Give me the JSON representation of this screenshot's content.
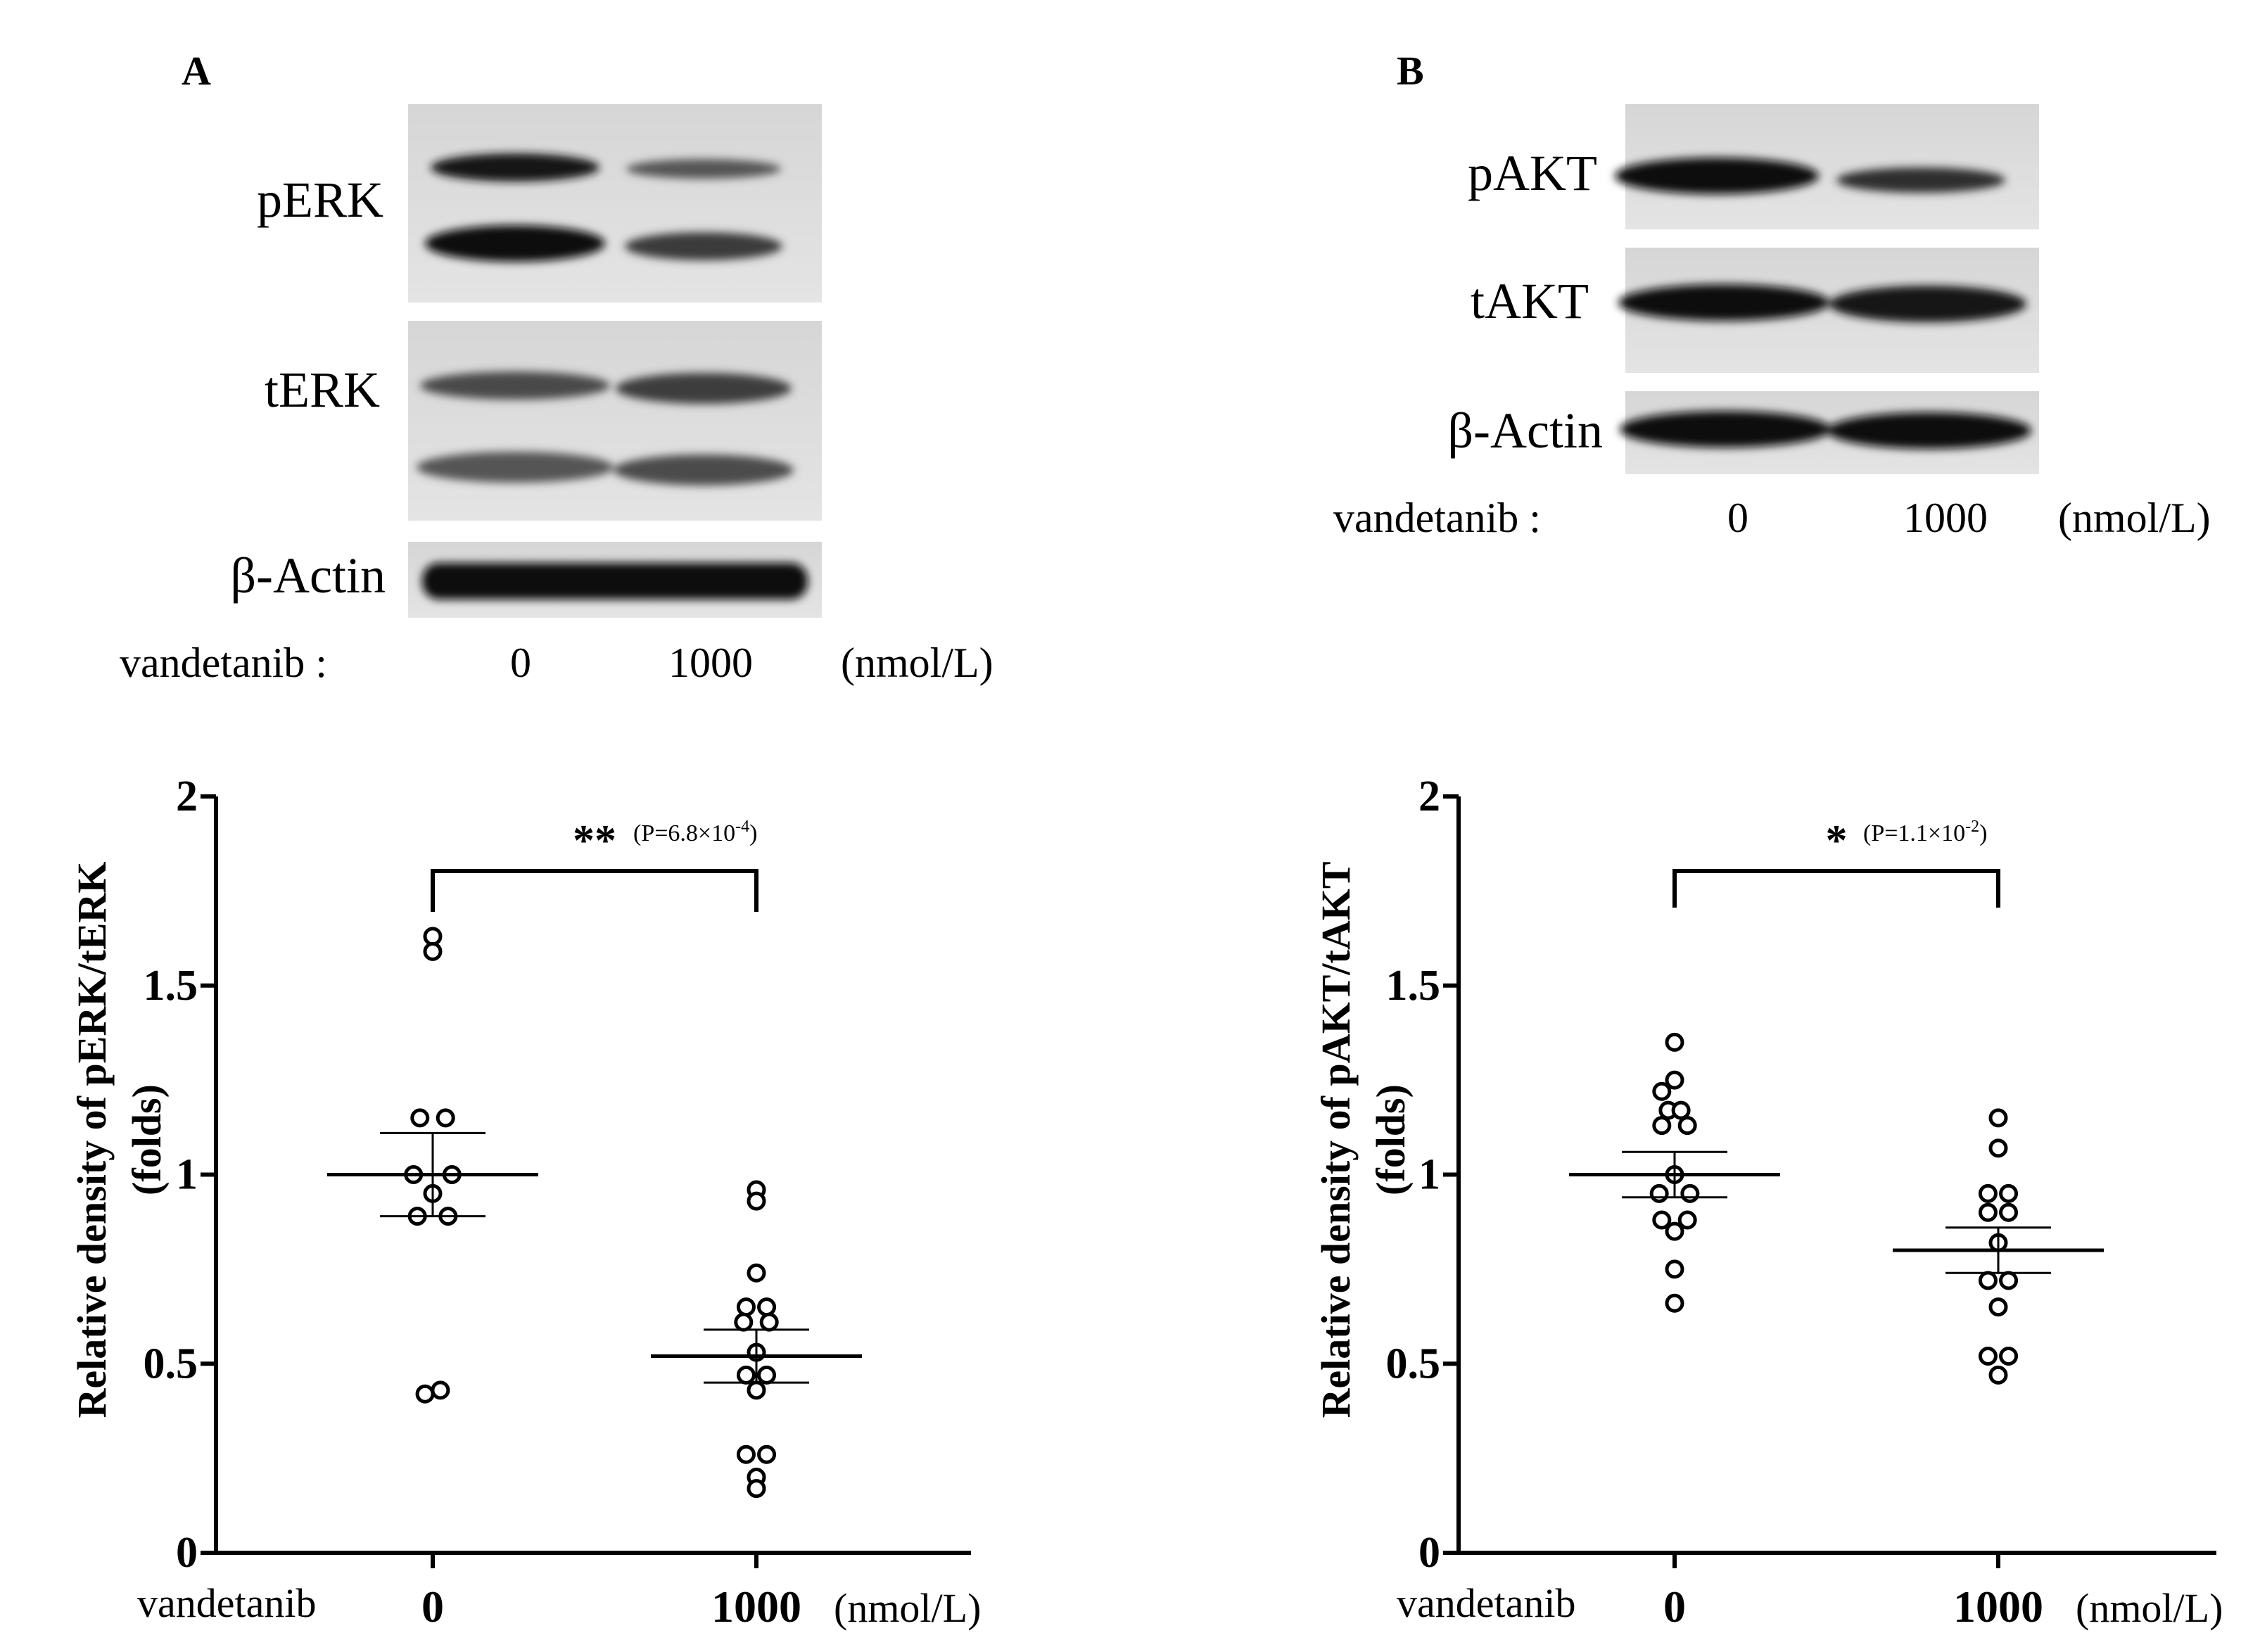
{
  "panels": [
    {
      "letter": "A",
      "blot": {
        "rows": [
          "pERK",
          "tERK",
          "β-Actin"
        ],
        "treatment_label": "vandetanib :",
        "doses": [
          "0",
          "1000"
        ],
        "unit": "(nmol/L)"
      }
    },
    {
      "letter": "B",
      "blot": {
        "rows": [
          "pAKT",
          "tAKT",
          "β-Actin"
        ],
        "treatment_label": "vandetanib :",
        "doses": [
          "0",
          "1000"
        ],
        "unit": "(nmol/L)"
      }
    }
  ],
  "chart_data": [
    {
      "type": "scatter",
      "title": "",
      "ylabel": "Relative density of pERK/tERK",
      "ylabel2": "(folds)",
      "ylim": [
        0,
        2
      ],
      "yticks": [
        "0",
        "0.5",
        "1",
        "1.5",
        "2"
      ],
      "ytick_values": [
        0,
        0.5,
        1,
        1.5,
        2
      ],
      "x_label": "vandetanib",
      "categories": [
        "0",
        "1000"
      ],
      "unit": "(nmol/L)",
      "groups": [
        {
          "category": "0",
          "mean": 1.0,
          "sem": [
            0.89,
            1.11
          ],
          "points": [
            {
              "offset": 0,
              "y": 1.63
            },
            {
              "offset": 0,
              "y": 1.59
            },
            {
              "offset": -0.5,
              "y": 1.15
            },
            {
              "offset": 0.5,
              "y": 1.15
            },
            {
              "offset": -0.75,
              "y": 1.0
            },
            {
              "offset": 0.75,
              "y": 1.0
            },
            {
              "offset": 0,
              "y": 0.95
            },
            {
              "offset": -0.6,
              "y": 0.89
            },
            {
              "offset": 0.6,
              "y": 0.89
            },
            {
              "offset": -0.3,
              "y": 0.42
            },
            {
              "offset": 0.3,
              "y": 0.43
            }
          ]
        },
        {
          "category": "1000",
          "mean": 0.52,
          "sem": [
            0.45,
            0.59
          ],
          "points": [
            {
              "offset": 0,
              "y": 0.96
            },
            {
              "offset": 0,
              "y": 0.93
            },
            {
              "offset": 0,
              "y": 0.74
            },
            {
              "offset": -0.4,
              "y": 0.65
            },
            {
              "offset": 0.4,
              "y": 0.65
            },
            {
              "offset": -0.5,
              "y": 0.61
            },
            {
              "offset": 0.5,
              "y": 0.61
            },
            {
              "offset": 0,
              "y": 0.53
            },
            {
              "offset": -0.4,
              "y": 0.47
            },
            {
              "offset": 0.4,
              "y": 0.47
            },
            {
              "offset": 0,
              "y": 0.43
            },
            {
              "offset": -0.4,
              "y": 0.26
            },
            {
              "offset": 0.4,
              "y": 0.26
            },
            {
              "offset": 0,
              "y": 0.2
            },
            {
              "offset": 0,
              "y": 0.17
            }
          ]
        }
      ],
      "significance": {
        "stars": "**",
        "p_label": "(P=6.8×10",
        "p_exp": "-4",
        "p_close": ")"
      }
    },
    {
      "type": "scatter",
      "title": "",
      "ylabel": "Relative density of pAKT/tAKT",
      "ylabel2": "(folds)",
      "ylim": [
        0,
        2
      ],
      "yticks": [
        "0",
        "0.5",
        "1",
        "1.5",
        "2"
      ],
      "ytick_values": [
        0,
        0.5,
        1,
        1.5,
        2
      ],
      "x_label": "vandetanib",
      "categories": [
        "0",
        "1000"
      ],
      "unit": "(nmol/L)",
      "groups": [
        {
          "category": "0",
          "mean": 1.0,
          "sem": [
            0.94,
            1.06
          ],
          "points": [
            {
              "offset": 0,
              "y": 1.35
            },
            {
              "offset": 0,
              "y": 1.25
            },
            {
              "offset": -0.5,
              "y": 1.22
            },
            {
              "offset": -0.25,
              "y": 1.17
            },
            {
              "offset": 0.25,
              "y": 1.17
            },
            {
              "offset": -0.5,
              "y": 1.13
            },
            {
              "offset": 0.5,
              "y": 1.13
            },
            {
              "offset": 0,
              "y": 1.0
            },
            {
              "offset": -0.6,
              "y": 0.95
            },
            {
              "offset": 0.6,
              "y": 0.95
            },
            {
              "offset": -0.5,
              "y": 0.88
            },
            {
              "offset": 0.5,
              "y": 0.88
            },
            {
              "offset": 0,
              "y": 0.85
            },
            {
              "offset": 0,
              "y": 0.75
            },
            {
              "offset": 0,
              "y": 0.66
            }
          ]
        },
        {
          "category": "1000",
          "mean": 0.8,
          "sem": [
            0.74,
            0.86
          ],
          "points": [
            {
              "offset": 0,
              "y": 1.15
            },
            {
              "offset": 0,
              "y": 1.07
            },
            {
              "offset": -0.4,
              "y": 0.95
            },
            {
              "offset": 0.4,
              "y": 0.95
            },
            {
              "offset": -0.4,
              "y": 0.9
            },
            {
              "offset": 0.4,
              "y": 0.9
            },
            {
              "offset": 0,
              "y": 0.82
            },
            {
              "offset": -0.4,
              "y": 0.72
            },
            {
              "offset": 0.4,
              "y": 0.72
            },
            {
              "offset": 0,
              "y": 0.65
            },
            {
              "offset": -0.4,
              "y": 0.52
            },
            {
              "offset": 0.4,
              "y": 0.52
            },
            {
              "offset": 0,
              "y": 0.47
            }
          ]
        }
      ],
      "significance": {
        "stars": "*",
        "p_label": "(P=1.1×10",
        "p_exp": "-2",
        "p_close": ")"
      }
    }
  ]
}
